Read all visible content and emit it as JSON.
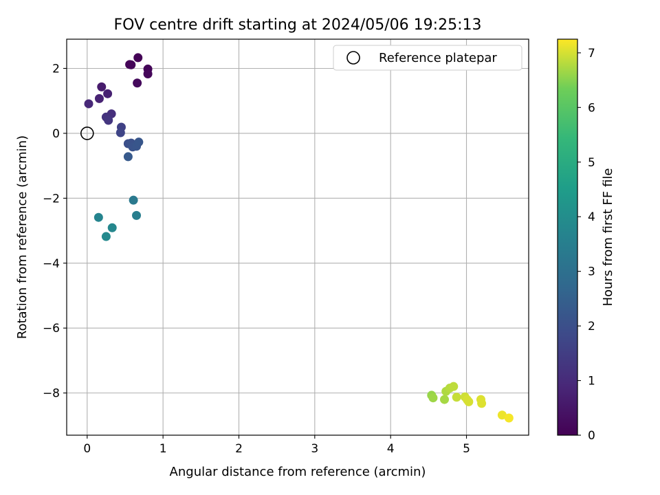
{
  "chart_data": {
    "type": "scatter",
    "title": "FOV centre drift starting at 2024/05/06 19:25:13",
    "xlabel": "Angular distance from reference (arcmin)",
    "ylabel": "Rotation from reference (arcmin)",
    "xlim": [
      -0.27,
      5.82
    ],
    "ylim": [
      -9.3,
      2.9
    ],
    "xticks": [
      0,
      1,
      2,
      3,
      4,
      5
    ],
    "xtick_labels": [
      "0",
      "1",
      "2",
      "3",
      "4",
      "5"
    ],
    "yticks": [
      2,
      0,
      -2,
      -4,
      -6,
      -8
    ],
    "ytick_labels": [
      "2",
      "0",
      "−2",
      "−4",
      "−6",
      "−8"
    ],
    "grid": true,
    "legend": {
      "position": "top-right",
      "entries": [
        {
          "label": "Reference platepar",
          "marker": "open-circle"
        }
      ]
    },
    "reference_point": {
      "x": 0.0,
      "y": 0.0
    },
    "colorbar": {
      "label": "Hours from first FF file",
      "range": [
        0,
        7.25
      ],
      "ticks": [
        0,
        1,
        2,
        3,
        4,
        5,
        6,
        7
      ],
      "tick_labels": [
        "0",
        "1",
        "2",
        "3",
        "4",
        "5",
        "6",
        "7"
      ],
      "colormap": "viridis"
    },
    "points": [
      {
        "x": 0.67,
        "y": 2.33,
        "c": 0.05
      },
      {
        "x": 0.56,
        "y": 2.12,
        "c": 0.05
      },
      {
        "x": 0.58,
        "y": 2.11,
        "c": 0.1
      },
      {
        "x": 0.8,
        "y": 1.98,
        "c": 0.1
      },
      {
        "x": 0.8,
        "y": 1.83,
        "c": 0.15
      },
      {
        "x": 0.66,
        "y": 1.55,
        "c": 0.2
      },
      {
        "x": 0.19,
        "y": 1.43,
        "c": 0.6
      },
      {
        "x": 0.27,
        "y": 1.22,
        "c": 0.75
      },
      {
        "x": 0.16,
        "y": 1.07,
        "c": 0.8
      },
      {
        "x": 0.02,
        "y": 0.91,
        "c": 0.9
      },
      {
        "x": 0.32,
        "y": 0.6,
        "c": 1.1
      },
      {
        "x": 0.25,
        "y": 0.5,
        "c": 1.2
      },
      {
        "x": 0.28,
        "y": 0.4,
        "c": 1.3
      },
      {
        "x": 0.45,
        "y": 0.19,
        "c": 1.6
      },
      {
        "x": 0.44,
        "y": 0.02,
        "c": 1.7
      },
      {
        "x": 0.54,
        "y": -0.32,
        "c": 2.0
      },
      {
        "x": 0.58,
        "y": -0.3,
        "c": 2.05
      },
      {
        "x": 0.6,
        "y": -0.42,
        "c": 2.1
      },
      {
        "x": 0.65,
        "y": -0.4,
        "c": 2.15
      },
      {
        "x": 0.68,
        "y": -0.27,
        "c": 2.2
      },
      {
        "x": 0.54,
        "y": -0.72,
        "c": 2.3
      },
      {
        "x": 0.61,
        "y": -2.06,
        "c": 3.3
      },
      {
        "x": 0.65,
        "y": -2.53,
        "c": 3.5
      },
      {
        "x": 0.15,
        "y": -2.59,
        "c": 3.7
      },
      {
        "x": 0.33,
        "y": -2.91,
        "c": 3.8
      },
      {
        "x": 0.25,
        "y": -3.18,
        "c": 3.85
      },
      {
        "x": 4.54,
        "y": -8.07,
        "c": 6.6
      },
      {
        "x": 4.56,
        "y": -8.15,
        "c": 6.65
      },
      {
        "x": 4.71,
        "y": -8.2,
        "c": 6.7
      },
      {
        "x": 4.73,
        "y": -7.95,
        "c": 6.75
      },
      {
        "x": 4.78,
        "y": -7.85,
        "c": 6.8
      },
      {
        "x": 4.83,
        "y": -7.8,
        "c": 6.85
      },
      {
        "x": 4.87,
        "y": -8.13,
        "c": 6.9
      },
      {
        "x": 4.98,
        "y": -8.12,
        "c": 6.95
      },
      {
        "x": 5.01,
        "y": -8.21,
        "c": 7.0
      },
      {
        "x": 5.03,
        "y": -8.27,
        "c": 7.0
      },
      {
        "x": 5.19,
        "y": -8.2,
        "c": 7.05
      },
      {
        "x": 5.2,
        "y": -8.32,
        "c": 7.05
      },
      {
        "x": 5.47,
        "y": -8.68,
        "c": 7.15
      },
      {
        "x": 5.56,
        "y": -8.77,
        "c": 7.2
      }
    ]
  }
}
